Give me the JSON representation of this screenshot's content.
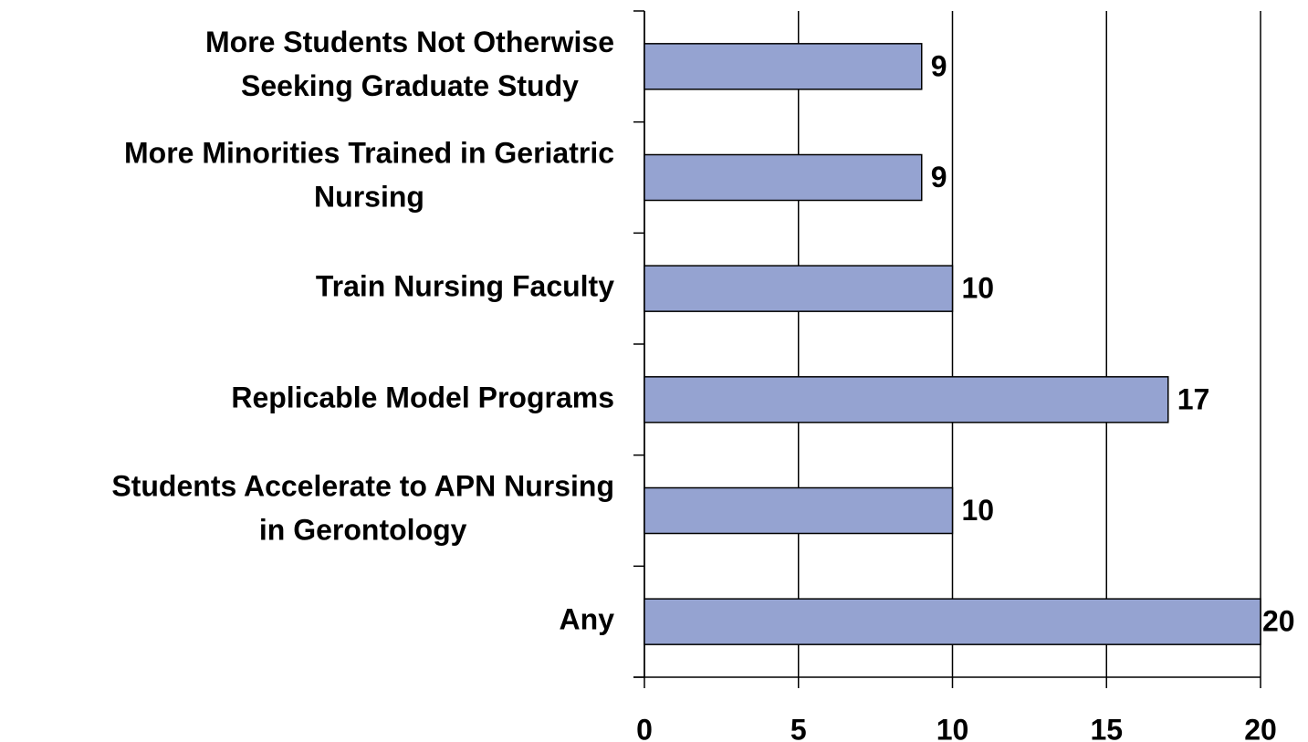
{
  "chart_data": {
    "type": "bar",
    "orientation": "horizontal",
    "categories": [
      "More Students Not Otherwise\nSeeking Graduate Study",
      "More Minorities Trained in Geriatric\nNursing",
      "Train Nursing Faculty",
      "Replicable Model Programs",
      "Students Accelerate to APN Nursing\nin Gerontology",
      "Any"
    ],
    "values": [
      9,
      9,
      10,
      17,
      10,
      20
    ],
    "color": "#95a3d1",
    "xlim": [
      0,
      20
    ],
    "xticks": [
      0,
      5,
      10,
      15,
      20
    ],
    "grid": true
  }
}
